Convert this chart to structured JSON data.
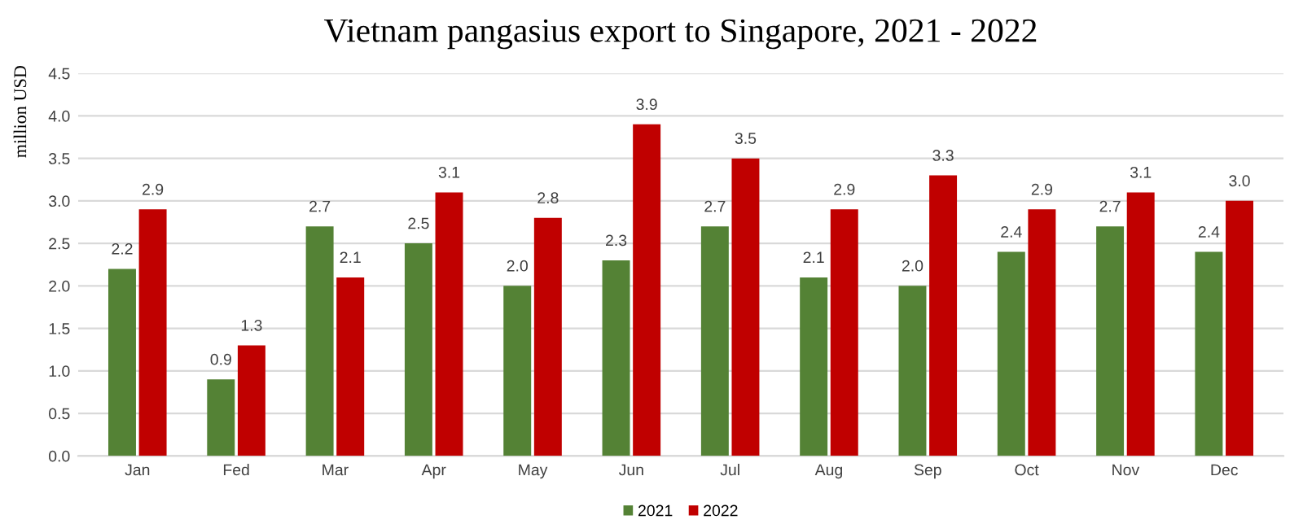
{
  "chart_data": {
    "type": "bar",
    "title": "Vietnam pangasius export to Singapore, 2021 - 2022",
    "ylabel": "million USD",
    "categories": [
      "Jan",
      "Fed",
      "Mar",
      "Apr",
      "May",
      "Jun",
      "Jul",
      "Aug",
      "Sep",
      "Oct",
      "Nov",
      "Dec"
    ],
    "series": [
      {
        "name": "2021",
        "color": "#548235",
        "values": [
          2.2,
          0.9,
          2.7,
          2.5,
          2.0,
          2.3,
          2.7,
          2.1,
          2.0,
          2.4,
          2.7,
          2.4
        ],
        "value_labels": [
          "2.2",
          "0.9",
          "2.7",
          "2.5",
          "2.0",
          "2.3",
          "2.7",
          "2.1",
          "2.0",
          "2.4",
          "2.7",
          "2.4"
        ]
      },
      {
        "name": "2022",
        "color": "#c00000",
        "values": [
          2.9,
          1.3,
          2.1,
          3.1,
          2.8,
          3.9,
          3.5,
          2.9,
          3.3,
          2.9,
          3.1,
          3.0
        ],
        "value_labels": [
          "2.9",
          "1.3",
          "2.1",
          "3.1",
          "2.8",
          "3.9",
          "3.5",
          "2.9",
          "3.3",
          "2.9",
          "3.1",
          "3.0"
        ]
      }
    ],
    "ylim": [
      0,
      4.5
    ],
    "yticks": [
      {
        "value": 0,
        "label": "0.0"
      },
      {
        "value": 0.5,
        "label": "0.5"
      },
      {
        "value": 1,
        "label": "1.0"
      },
      {
        "value": 1.5,
        "label": "1.5"
      },
      {
        "value": 2,
        "label": "2.0"
      },
      {
        "value": 2.5,
        "label": "2.5"
      },
      {
        "value": 3,
        "label": "3.0"
      },
      {
        "value": 3.5,
        "label": "3.5"
      },
      {
        "value": 4,
        "label": "4.0"
      },
      {
        "value": 4.5,
        "label": "4.5"
      }
    ],
    "grid": "y",
    "legend": "bottom"
  }
}
